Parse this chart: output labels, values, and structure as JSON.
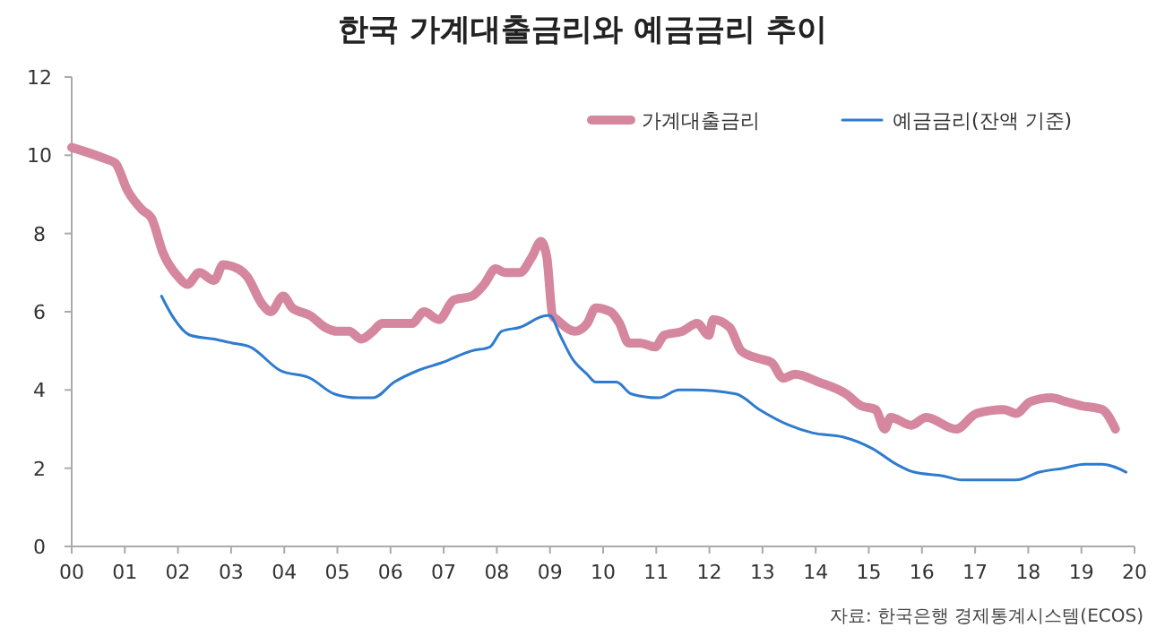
{
  "chart_data": {
    "type": "line",
    "title": "한국 가계대출금리와 예금금리 추이",
    "annotations": [
      "자료: 한국은행 경제통계시스템(ECOS)"
    ],
    "xlim": [
      2000,
      2020
    ],
    "xticks": [
      {
        "value": 2000,
        "label": "00"
      },
      {
        "value": 2001,
        "label": "01"
      },
      {
        "value": 2002,
        "label": "02"
      },
      {
        "value": 2003,
        "label": "03"
      },
      {
        "value": 2004,
        "label": "04"
      },
      {
        "value": 2005,
        "label": "05"
      },
      {
        "value": 2006,
        "label": "06"
      },
      {
        "value": 2007,
        "label": "07"
      },
      {
        "value": 2008,
        "label": "08"
      },
      {
        "value": 2009,
        "label": "09"
      },
      {
        "value": 2010,
        "label": "10"
      },
      {
        "value": 2011,
        "label": "11"
      },
      {
        "value": 2012,
        "label": "12"
      },
      {
        "value": 2013,
        "label": "13"
      },
      {
        "value": 2014,
        "label": "14"
      },
      {
        "value": 2015,
        "label": "15"
      },
      {
        "value": 2016,
        "label": "16"
      },
      {
        "value": 2017,
        "label": "17"
      },
      {
        "value": 2018,
        "label": "18"
      },
      {
        "value": 2019,
        "label": "19"
      },
      {
        "value": 2020,
        "label": "20"
      }
    ],
    "ylim": [
      0,
      12
    ],
    "yticks": [
      0,
      2,
      4,
      6,
      8,
      10,
      12
    ],
    "grid": false,
    "legend": "top right",
    "marker": "none",
    "line_style": "solid",
    "series": [
      {
        "name": "가계대출금리",
        "color": "#d4879e",
        "x": [
          2000.0,
          2000.65,
          2000.82,
          2001.05,
          2001.33,
          2001.5,
          2001.72,
          2002.0,
          2002.18,
          2002.4,
          2002.68,
          2002.85,
          2003.13,
          2003.3,
          2003.58,
          2003.75,
          2003.98,
          2004.15,
          2004.49,
          2004.77,
          2005.0,
          2005.22,
          2005.45,
          2005.67,
          2005.84,
          2006.12,
          2006.4,
          2006.63,
          2006.91,
          2007.19,
          2007.53,
          2007.76,
          2007.98,
          2008.15,
          2008.43,
          2008.66,
          2008.83,
          2008.94,
          2009.05,
          2009.13,
          2009.47,
          2009.7,
          2009.86,
          2010.14,
          2010.31,
          2010.48,
          2010.7,
          2010.98,
          2011.15,
          2011.49,
          2011.77,
          2011.99,
          2012.07,
          2012.38,
          2012.6,
          2012.94,
          2013.17,
          2013.39,
          2013.61,
          2014.06,
          2014.57,
          2014.85,
          2015.13,
          2015.3,
          2015.41,
          2015.8,
          2016.08,
          2016.64,
          2017.03,
          2017.54,
          2017.77,
          2018.04,
          2018.43,
          2018.71,
          2018.99,
          2019.39,
          2019.64
        ],
        "values": [
          10.2,
          9.9,
          9.8,
          9.1,
          8.6,
          8.4,
          7.5,
          6.9,
          6.7,
          7.0,
          6.8,
          7.2,
          7.1,
          6.9,
          6.2,
          6.0,
          6.4,
          6.1,
          5.9,
          5.6,
          5.5,
          5.5,
          5.3,
          5.5,
          5.7,
          5.7,
          5.7,
          6.0,
          5.8,
          6.3,
          6.4,
          6.7,
          7.1,
          7.0,
          7.0,
          7.4,
          7.8,
          7.4,
          5.9,
          5.8,
          5.5,
          5.7,
          6.1,
          6.0,
          5.7,
          5.2,
          5.2,
          5.1,
          5.4,
          5.5,
          5.7,
          5.4,
          5.8,
          5.6,
          5.0,
          4.8,
          4.7,
          4.3,
          4.4,
          4.2,
          3.9,
          3.6,
          3.5,
          3.0,
          3.3,
          3.1,
          3.3,
          3.0,
          3.4,
          3.5,
          3.4,
          3.7,
          3.8,
          3.7,
          3.6,
          3.5,
          3.0
        ]
      },
      {
        "name": "예금금리(잔액 기준)",
        "color": "#2e7bcf",
        "x": [
          2001.69,
          2001.89,
          2002.23,
          2002.68,
          2003.02,
          2003.36,
          2003.92,
          2004.49,
          2004.94,
          2005.39,
          2005.67,
          2006.07,
          2006.52,
          2006.97,
          2007.53,
          2007.87,
          2008.09,
          2008.43,
          2008.94,
          2009.0,
          2009.19,
          2009.42,
          2009.7,
          2009.86,
          2010.25,
          2010.53,
          2011.04,
          2011.43,
          2011.66,
          2012.5,
          2012.94,
          2013.5,
          2013.95,
          2014.51,
          2015.07,
          2015.52,
          2015.85,
          2016.41,
          2016.75,
          2017.08,
          2017.77,
          2018.21,
          2018.66,
          2019.06,
          2019.39,
          2019.84
        ],
        "values": [
          6.4,
          5.9,
          5.4,
          5.3,
          5.2,
          5.1,
          4.5,
          4.3,
          3.9,
          3.8,
          3.8,
          4.2,
          4.5,
          4.7,
          5.0,
          5.1,
          5.5,
          5.6,
          5.9,
          5.9,
          5.4,
          4.8,
          4.4,
          4.2,
          4.2,
          3.9,
          3.8,
          4.0,
          4.0,
          3.9,
          3.5,
          3.1,
          2.9,
          2.8,
          2.5,
          2.1,
          1.9,
          1.8,
          1.7,
          1.7,
          1.7,
          1.9,
          2.0,
          2.1,
          2.1,
          1.9
        ]
      }
    ]
  }
}
